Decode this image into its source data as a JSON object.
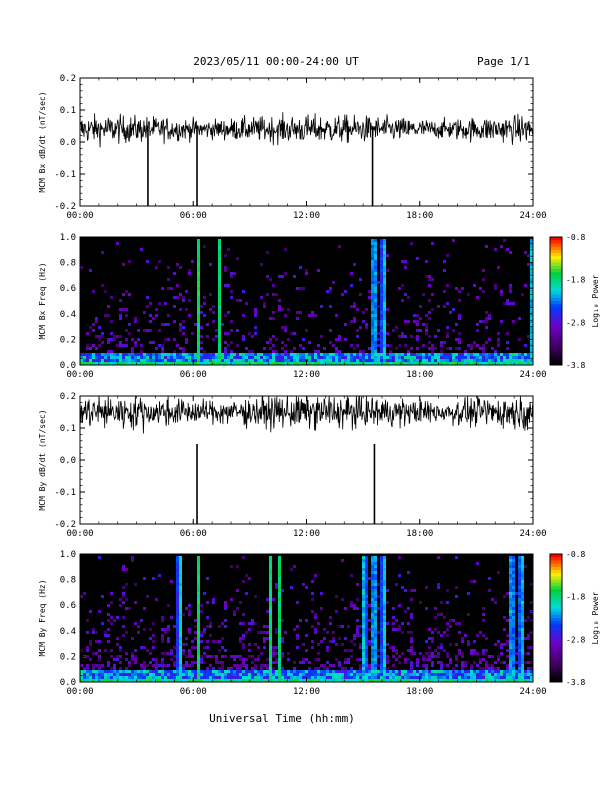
{
  "header": {
    "title": "2023/05/11  00:00-24:00 UT",
    "page": "Page 1/1"
  },
  "footer": {
    "xlabel": "Universal Time (hh:mm)"
  },
  "chart_data": [
    {
      "type": "line",
      "ylabel": "MCM Bx dB/dt (nT/sec)",
      "ylim": [
        -0.2,
        0.2
      ],
      "yticks": [
        "0.2",
        "0.1",
        "0.0",
        "-0.1",
        "-0.2"
      ],
      "xticks": [
        "00:00",
        "06:00",
        "12:00",
        "18:00",
        "24:00"
      ],
      "xlim": [
        0,
        24
      ],
      "spikes_hours": [
        3.6,
        6.2,
        15.5
      ]
    },
    {
      "type": "heatmap",
      "ylabel": "MCM Bx Freq (Hz)",
      "ylim": [
        0,
        1.0
      ],
      "yticks": [
        "1.0",
        "0.8",
        "0.6",
        "0.4",
        "0.2",
        "0.0"
      ],
      "xticks": [
        "00:00",
        "06:00",
        "12:00",
        "18:00",
        "24:00"
      ],
      "xlim": [
        0,
        24
      ],
      "colorbar": {
        "label": "Log₁₀ Power",
        "ticks": [
          "-0.8",
          "-1.8",
          "-2.8",
          "-3.8"
        ],
        "range": [
          -3.8,
          -0.8
        ]
      },
      "bright_columns_hours": [
        6.2,
        7.3,
        15.5,
        16.0,
        23.9
      ]
    },
    {
      "type": "line",
      "ylabel": "MCM By dB/dt (nT/sec)",
      "ylim": [
        -0.2,
        0.2
      ],
      "yticks": [
        "0.2",
        "0.1",
        "0.0",
        "-0.1",
        "-0.2"
      ],
      "xticks": [
        "00:00",
        "06:00",
        "12:00",
        "18:00",
        "24:00"
      ],
      "xlim": [
        0,
        24
      ],
      "spikes_hours": [
        6.2,
        15.6
      ]
    },
    {
      "type": "heatmap",
      "ylabel": "MCM By Freq (Hz)",
      "ylim": [
        0,
        1.0
      ],
      "yticks": [
        "1.0",
        "0.8",
        "0.6",
        "0.4",
        "0.2",
        "0.0"
      ],
      "xticks": [
        "00:00",
        "06:00",
        "12:00",
        "18:00",
        "24:00"
      ],
      "xlim": [
        0,
        24
      ],
      "colorbar": {
        "label": "Log₁₀ Power",
        "ticks": [
          "-0.8",
          "-1.8",
          "-2.8",
          "-3.8"
        ],
        "range": [
          -3.8,
          -0.8
        ]
      },
      "bright_columns_hours": [
        5.2,
        6.2,
        10.0,
        10.5,
        15.0,
        15.5,
        16.0,
        22.8,
        23.3
      ]
    }
  ]
}
